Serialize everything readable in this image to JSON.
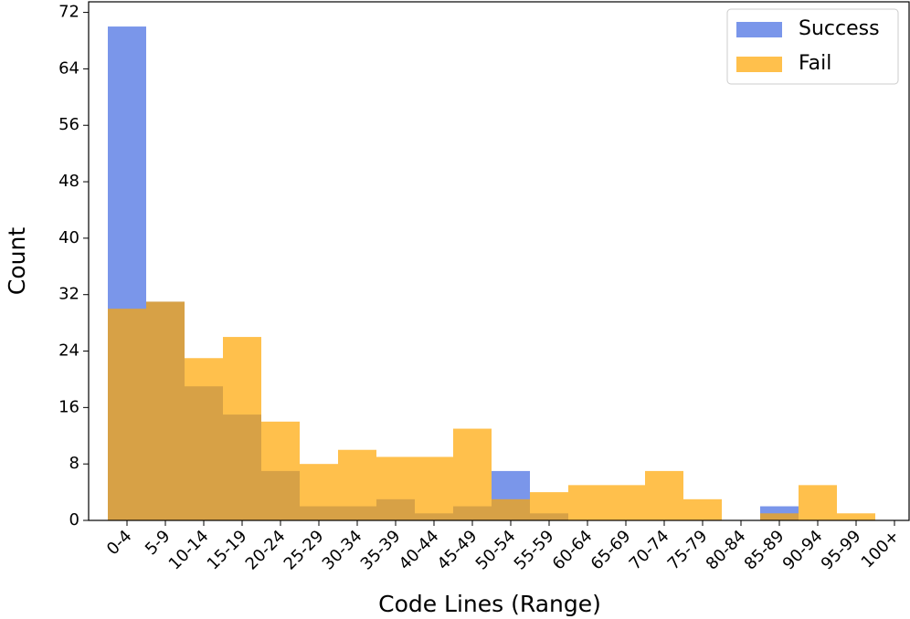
{
  "chart_data": {
    "type": "bar",
    "overlap": true,
    "xlabel": "Code Lines (Range)",
    "ylabel": "Count",
    "categories": [
      "0-4",
      "5-9",
      "10-14",
      "15-19",
      "20-24",
      "25-29",
      "30-34",
      "35-39",
      "40-44",
      "45-49",
      "50-54",
      "55-59",
      "60-64",
      "65-69",
      "70-74",
      "75-79",
      "80-84",
      "85-89",
      "90-94",
      "95-99",
      "100+"
    ],
    "series": [
      {
        "name": "Success",
        "color": "#4169e1",
        "values": [
          70,
          31,
          19,
          15,
          7,
          2,
          2,
          3,
          1,
          2,
          7,
          1,
          0,
          0,
          0,
          0,
          0,
          2,
          0,
          0,
          0
        ]
      },
      {
        "name": "Fail",
        "color": "#ffa500",
        "values": [
          30,
          31,
          23,
          26,
          14,
          8,
          10,
          9,
          9,
          13,
          3,
          4,
          5,
          5,
          7,
          3,
          0,
          1,
          5,
          1,
          0
        ]
      }
    ],
    "alpha": 0.7,
    "ylim": [
      0,
      73.5
    ],
    "yticks": [
      0,
      8,
      16,
      24,
      32,
      40,
      48,
      56,
      64,
      72
    ],
    "legend": "upper right"
  }
}
